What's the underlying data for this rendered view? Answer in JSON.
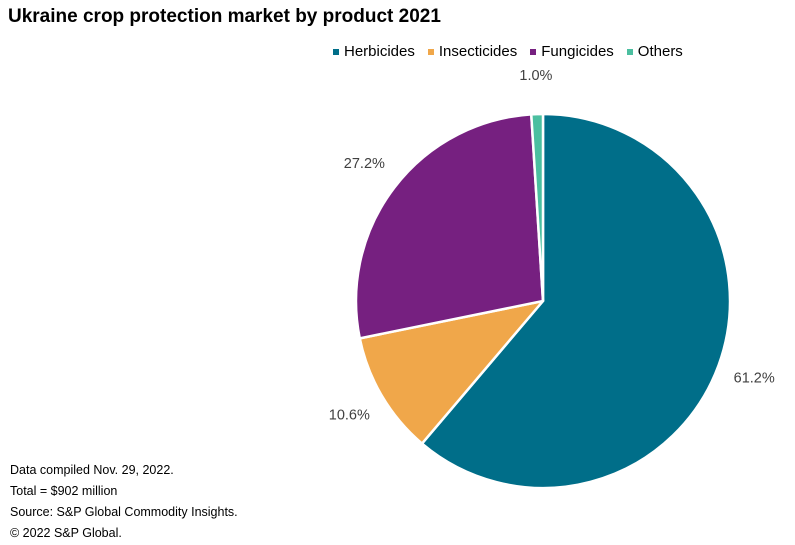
{
  "chart_data": {
    "type": "pie",
    "title": "Ukraine crop protection market by product 2021",
    "categories": [
      "Herbicides",
      "Insecticides",
      "Fungicides",
      "Others"
    ],
    "values": [
      61.2,
      10.6,
      27.2,
      1.0
    ],
    "value_labels": [
      "61.2%",
      "10.6%",
      "27.2%",
      "1.0%"
    ],
    "colors": [
      "#006e89",
      "#f0a74a",
      "#762080",
      "#4bbfa0"
    ],
    "legend_position": "top",
    "start_angle_deg": 0,
    "direction": "clockwise"
  },
  "footnotes": [
    "Data compiled Nov. 29, 2022.",
    "Total = $902 million",
    "Source: S&P Global Commodity Insights.",
    "© 2022 S&P Global."
  ]
}
